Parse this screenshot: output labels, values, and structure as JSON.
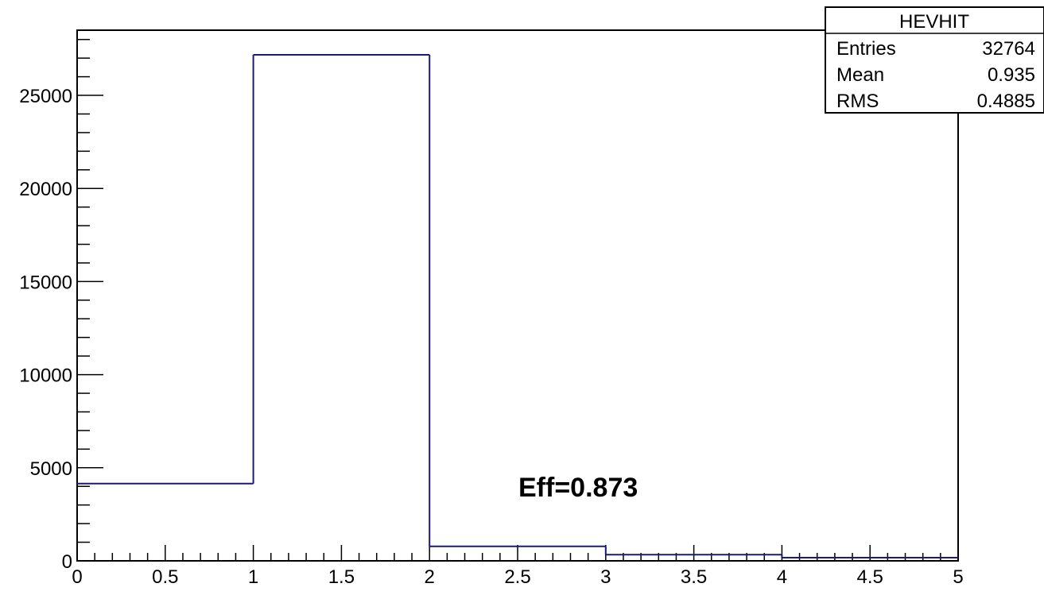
{
  "chart_data": {
    "type": "bar",
    "subtype": "step-histogram",
    "title": "",
    "xlabel": "",
    "ylabel": "",
    "bin_edges": [
      0,
      1,
      2,
      3,
      4,
      5
    ],
    "values": [
      4150,
      27180,
      780,
      330,
      170
    ],
    "xlim": [
      0,
      5
    ],
    "ylim": [
      0,
      28500
    ],
    "x_ticks": [
      "0",
      "0.5",
      "1",
      "1.5",
      "2",
      "2.5",
      "3",
      "3.5",
      "4",
      "4.5",
      "5"
    ],
    "y_ticks": [
      "0",
      "5000",
      "10000",
      "15000",
      "20000",
      "25000"
    ],
    "grid": false,
    "line_color": "#1a1a7a",
    "stats_box": {
      "placement": "top-right",
      "title": "HEVHIT",
      "rows": [
        {
          "label": "Entries",
          "value": "32764"
        },
        {
          "label": "Mean",
          "value": "0.935"
        },
        {
          "label": "RMS",
          "value": "0.4885"
        }
      ]
    },
    "annotation": "Eff=0.873"
  }
}
